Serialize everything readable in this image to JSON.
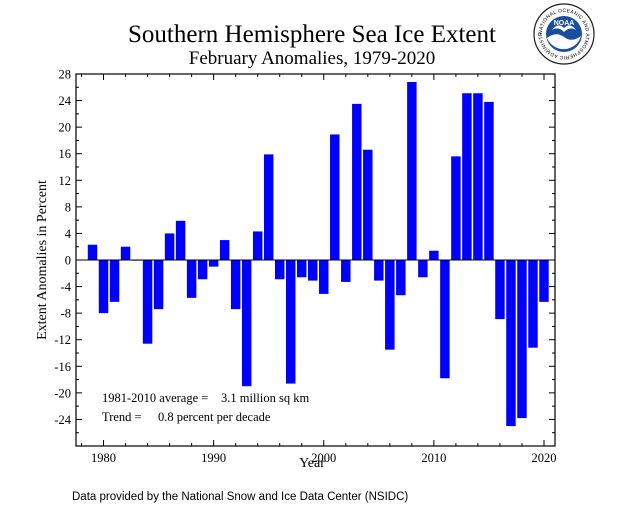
{
  "chart_data": {
    "type": "bar",
    "title": "Southern Hemisphere Sea Ice Extent",
    "subtitle": "February Anomalies, 1979-2020",
    "xlabel": "Year",
    "ylabel": "Extent Anomalies in Percent",
    "xlim": [
      1977.5,
      2021
    ],
    "ylim": [
      -28,
      28
    ],
    "x_ticks": [
      1980,
      1990,
      2000,
      2010,
      2020
    ],
    "y_ticks": [
      -24,
      -20,
      -16,
      -12,
      -8,
      -4,
      0,
      4,
      8,
      12,
      16,
      20,
      24,
      28
    ],
    "bar_color": "#0000ff",
    "x": [
      1979,
      1980,
      1981,
      1982,
      1983,
      1984,
      1985,
      1986,
      1987,
      1988,
      1989,
      1990,
      1991,
      1992,
      1993,
      1994,
      1995,
      1996,
      1997,
      1998,
      1999,
      2000,
      2001,
      2002,
      2003,
      2004,
      2005,
      2006,
      2007,
      2008,
      2009,
      2010,
      2011,
      2012,
      2013,
      2014,
      2015,
      2016,
      2017,
      2018,
      2019,
      2020
    ],
    "values": [
      2.3,
      -8.0,
      -6.3,
      2.0,
      -0.1,
      -12.6,
      -7.4,
      4.0,
      5.9,
      -5.7,
      -2.9,
      -1.0,
      3.0,
      -7.4,
      -19.0,
      4.3,
      15.9,
      -2.9,
      -18.6,
      -2.6,
      -3.1,
      -5.1,
      18.9,
      -3.3,
      23.5,
      16.6,
      -3.1,
      -13.5,
      -5.3,
      26.8,
      -2.6,
      1.4,
      -17.8,
      15.6,
      25.1,
      25.1,
      23.8,
      -8.9,
      -25.0,
      -23.8,
      -13.2,
      -6.3
    ],
    "annotations": {
      "average_label": "1981-2010 average =",
      "average_value": "3.1 million sq km",
      "trend_label": "Trend =",
      "trend_value": "0.8 percent per decade"
    },
    "grid": false,
    "legend": "none"
  },
  "footer": {
    "source": "Data provided by the National Snow and Ice Data Center (NSIDC)"
  },
  "logo": {
    "wordmark": "NOAA",
    "ring_text": "NATIONAL OCEANIC AND ATMOSPHERIC ADMINISTRATION · U.S. DEPARTMENT OF COMMERCE ·"
  }
}
